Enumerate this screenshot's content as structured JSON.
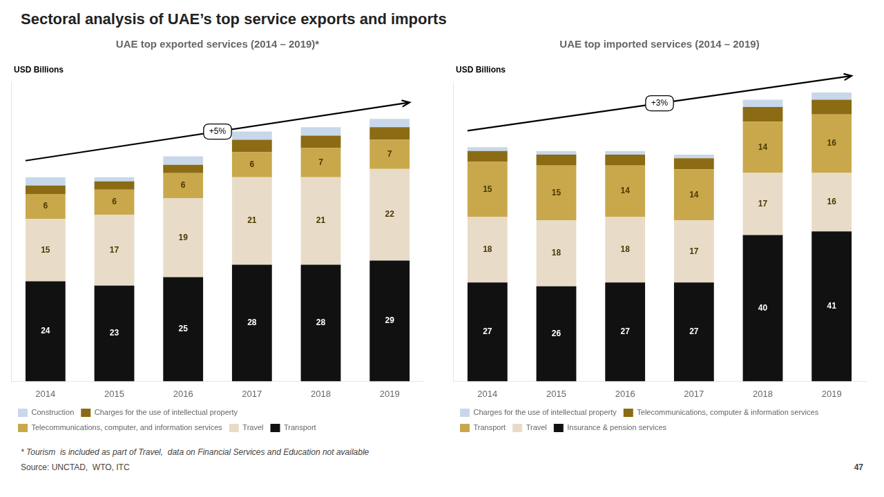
{
  "title": "Sectoral analysis of UAE’s top service exports and imports",
  "footnote": "* Tourism  is included as part of Travel,  data on Financial Services and Education not available",
  "source": "Source: UNCTAD,  WTO, ITC",
  "page": "47",
  "chart_data": [
    {
      "type": "bar",
      "title": "UAE top exported services (2014 – 2019)*",
      "ylabel": "USD Billions",
      "annotations": [
        "+5%"
      ],
      "categories": [
        "2014",
        "2015",
        "2016",
        "2017",
        "2018",
        "2019"
      ],
      "series": [
        {
          "name": "Transport",
          "color": "#111111",
          "values": [
            24,
            23,
            25,
            28,
            28,
            29
          ],
          "data_labels": true
        },
        {
          "name": "Travel",
          "color": "#e8dcc8",
          "values": [
            15,
            17,
            19,
            21,
            21,
            22
          ],
          "data_labels": true
        },
        {
          "name": "Telecommunications, computer, and information services",
          "color": "#c9a84c",
          "values": [
            6,
            6,
            6,
            6,
            7,
            7
          ],
          "data_labels": true
        },
        {
          "name": "Charges for the use of intellectual property",
          "color": "#8b6b14",
          "values": [
            2,
            2,
            2,
            3,
            3,
            3
          ],
          "data_labels": false
        },
        {
          "name": "Construction",
          "color": "#c8d8ea",
          "values": [
            2,
            1,
            2,
            2,
            2,
            2
          ],
          "data_labels": false
        }
      ],
      "stacked": true,
      "ylim": [
        0,
        72
      ],
      "yticks": [],
      "tick_labels": "x",
      "grid": false,
      "legend": "bottom"
    },
    {
      "type": "bar",
      "title": "UAE top imported services (2014 – 2019)",
      "ylabel": "USD Billions",
      "annotations": [
        "+3%"
      ],
      "categories": [
        "2014",
        "2015",
        "2016",
        "2017",
        "2018",
        "2019"
      ],
      "series": [
        {
          "name": "Insurance & pension services",
          "color": "#111111",
          "values": [
            27,
            26,
            27,
            27,
            40,
            41
          ],
          "data_labels": true
        },
        {
          "name": "Travel",
          "color": "#e8dcc8",
          "values": [
            18,
            18,
            18,
            17,
            17,
            16
          ],
          "data_labels": true
        },
        {
          "name": "Transport",
          "color": "#c9a84c",
          "values": [
            15,
            15,
            14,
            14,
            14,
            16
          ],
          "data_labels": true
        },
        {
          "name": "Telecommunications, computer & information services",
          "color": "#8b6b14",
          "values": [
            3,
            3,
            3,
            3,
            4,
            4
          ],
          "data_labels": false
        },
        {
          "name": "Charges for the use of intellectual property",
          "color": "#c8d8ea",
          "values": [
            1,
            1,
            1,
            1,
            2,
            2
          ],
          "data_labels": false
        }
      ],
      "stacked": true,
      "ylim": [
        0,
        82
      ],
      "yticks": [],
      "tick_labels": "x",
      "grid": false,
      "legend": "bottom"
    }
  ]
}
